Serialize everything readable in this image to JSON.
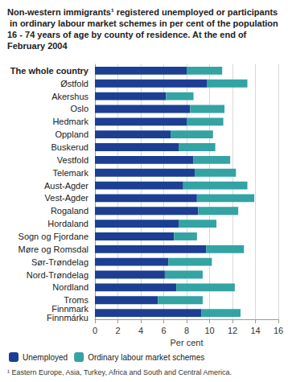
{
  "chart_data": {
    "type": "bar",
    "title": "Non-western immigrants¹ registered unemployed or participants in ordinary labour market schemes in per cent of the population 16 - 74 years of age by county of residence. At the end of February 2004",
    "footnote": "¹ Eastern Europe, Asia, Turkey, Africa and South and Central America.",
    "x_label": "Per cent",
    "orientation": "horizontal",
    "stacked": true,
    "grid": true,
    "legend": "bottom",
    "categories": [
      "The whole country",
      "Østfold",
      "Akershus",
      "Oslo",
      "Hedmark",
      "Oppland",
      "Buskerud",
      "Vestfold",
      "Telemark",
      "Aust-Agder",
      "Vest-Agder",
      "Rogaland",
      "Hordaland",
      "Sogn og Fjordane",
      "Møre og Romsdal",
      "Sør-Trøndelag",
      "Nord-Trøndelag",
      "Nordland",
      "Troms",
      "Finnmark\nFinnmárku"
    ],
    "series": [
      {
        "name": "Unemployed",
        "color": "#1c3f94",
        "values": [
          8.0,
          9.8,
          6.2,
          8.3,
          8.0,
          6.6,
          7.3,
          8.6,
          8.7,
          7.7,
          8.9,
          9.0,
          7.3,
          6.9,
          9.7,
          6.4,
          6.1,
          7.1,
          5.5,
          9.3
        ]
      },
      {
        "name": "Ordinary labour market schemes",
        "color": "#33a3a3",
        "values": [
          3.1,
          3.5,
          2.4,
          3.0,
          3.2,
          3.7,
          3.2,
          3.2,
          3.6,
          5.6,
          5.0,
          3.5,
          3.3,
          2.0,
          3.3,
          3.8,
          3.3,
          5.1,
          3.9,
          3.4
        ]
      }
    ],
    "xlim": [
      0,
      16
    ],
    "xticks": [
      0,
      2,
      4,
      6,
      8,
      10,
      12,
      14,
      16
    ]
  }
}
